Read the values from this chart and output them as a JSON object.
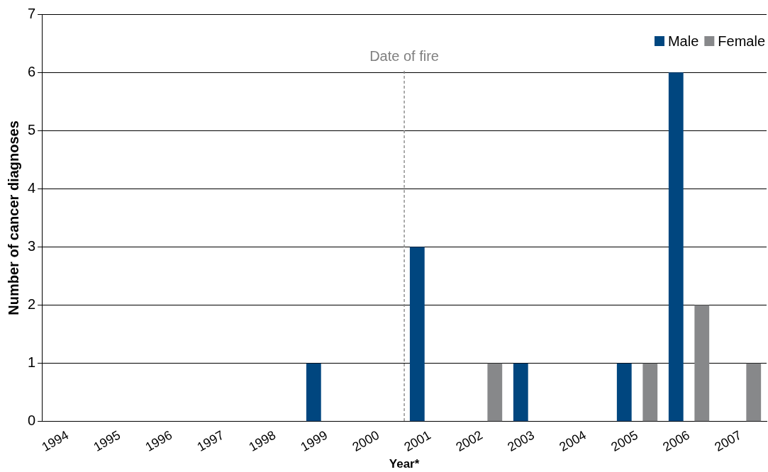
{
  "chart_data": {
    "type": "bar",
    "xlabel": "Year*",
    "ylabel": "Number of cancer diagnoses",
    "categories": [
      "1994",
      "1995",
      "1996",
      "1997",
      "1998",
      "1999",
      "2000",
      "2001",
      "2002",
      "2003",
      "2004",
      "2005",
      "2006",
      "2007"
    ],
    "series": [
      {
        "name": "Male",
        "color": "#00467f",
        "values": [
          0,
          0,
          0,
          0,
          0,
          1,
          0,
          3,
          0,
          1,
          0,
          1,
          6,
          0
        ]
      },
      {
        "name": "Female",
        "color": "#87888a",
        "values": [
          0,
          0,
          0,
          0,
          0,
          0,
          0,
          0,
          1,
          0,
          0,
          1,
          2,
          1
        ]
      }
    ],
    "ylim": [
      0,
      7
    ],
    "yticks": [
      0,
      1,
      2,
      3,
      4,
      5,
      6,
      7
    ],
    "grid": "y",
    "legend": "top right",
    "ref_lines": [
      {
        "axis": "x",
        "value": "2001",
        "label": "Date of fire",
        "color": "#808080",
        "line_style": "dashed"
      }
    ]
  }
}
